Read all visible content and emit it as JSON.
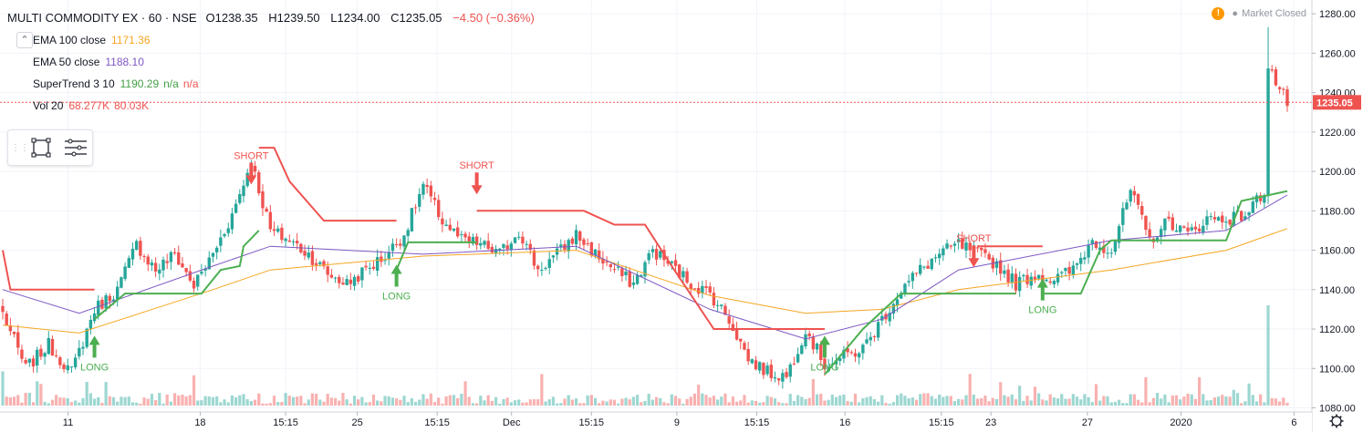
{
  "header": {
    "symbol": "MULTI COMMODITY EX · 60 · NSE",
    "open": "O1238.35",
    "high": "H1239.50",
    "low": "L1234.00",
    "close": "C1235.05",
    "change": "−4.50 (−0.36%)"
  },
  "indicators": [
    {
      "name": "EMA 100 close",
      "value": "1171.36",
      "color": "#f5a623"
    },
    {
      "name": "EMA 50 close",
      "value": "1188.10",
      "color": "#7e57c2"
    },
    {
      "name": "SuperTrend 3 10",
      "value": "1190.29",
      "extra1": "n/a",
      "extra2": "n/a",
      "color": "#43a047"
    },
    {
      "name": "Vol 20",
      "value": "68.277K",
      "extra1": "80.03K",
      "color": "#ef5350"
    }
  ],
  "status": {
    "icon": "warning-icon",
    "text": "Market Closed"
  },
  "toolbar": {
    "icons": [
      "drag-handle-icon",
      "rectangle-tool-icon",
      "object-tree-icon"
    ]
  },
  "settings_icon": "gear-icon",
  "chart_data": {
    "type": "candlestick",
    "y_axis": {
      "ticks": [
        "1280.00",
        "1260.00",
        "1240.00",
        "1220.00",
        "1200.00",
        "1180.00",
        "1160.00",
        "1140.00",
        "1120.00",
        "1100.00",
        "1080.00"
      ],
      "ylim": [
        1077,
        1287
      ]
    },
    "x_axis": {
      "ticks": [
        "11",
        "18",
        "15:15",
        "25",
        "15:15",
        "Dec",
        "15:15",
        "9",
        "15:15",
        "16",
        "15:15",
        "23",
        "27",
        "2020",
        "6"
      ]
    },
    "last_price": "1235.05",
    "colors": {
      "up": "#26a69a",
      "down": "#ef5350",
      "ema100": "#f5a623",
      "ema50": "#7e57c2",
      "st_up": "#4caf50",
      "st_down": "#ef5350",
      "vol_up": "#26a69a",
      "vol_down": "#ef5350"
    },
    "anchors": [
      [
        0,
        1128
      ],
      [
        6,
        1100
      ],
      [
        12,
        1112
      ],
      [
        18,
        1098
      ],
      [
        24,
        1130
      ],
      [
        30,
        1140
      ],
      [
        35,
        1163
      ],
      [
        40,
        1150
      ],
      [
        45,
        1158
      ],
      [
        50,
        1142
      ],
      [
        55,
        1158
      ],
      [
        60,
        1178
      ],
      [
        65,
        1205
      ],
      [
        70,
        1170
      ],
      [
        75,
        1165
      ],
      [
        80,
        1158
      ],
      [
        85,
        1148
      ],
      [
        90,
        1143
      ],
      [
        95,
        1150
      ],
      [
        100,
        1157
      ],
      [
        105,
        1168
      ],
      [
        110,
        1193
      ],
      [
        115,
        1175
      ],
      [
        120,
        1165
      ],
      [
        125,
        1163
      ],
      [
        130,
        1158
      ],
      [
        135,
        1170
      ],
      [
        140,
        1150
      ],
      [
        145,
        1158
      ],
      [
        150,
        1168
      ],
      [
        155,
        1158
      ],
      [
        160,
        1150
      ],
      [
        165,
        1143
      ],
      [
        170,
        1160
      ],
      [
        175,
        1152
      ],
      [
        180,
        1143
      ],
      [
        185,
        1138
      ],
      [
        190,
        1125
      ],
      [
        195,
        1105
      ],
      [
        200,
        1098
      ],
      [
        205,
        1096
      ],
      [
        210,
        1120
      ],
      [
        215,
        1102
      ],
      [
        220,
        1106
      ],
      [
        225,
        1110
      ],
      [
        230,
        1125
      ],
      [
        235,
        1140
      ],
      [
        240,
        1150
      ],
      [
        245,
        1158
      ],
      [
        250,
        1163
      ],
      [
        255,
        1158
      ],
      [
        260,
        1153
      ],
      [
        265,
        1143
      ],
      [
        270,
        1148
      ],
      [
        275,
        1145
      ],
      [
        280,
        1150
      ],
      [
        285,
        1165
      ],
      [
        290,
        1160
      ],
      [
        295,
        1190
      ],
      [
        300,
        1165
      ],
      [
        305,
        1175
      ],
      [
        310,
        1168
      ],
      [
        315,
        1176
      ],
      [
        320,
        1176
      ],
      [
        325,
        1178
      ],
      [
        330,
        1190
      ],
      [
        331,
        1255
      ],
      [
        333,
        1245
      ],
      [
        336,
        1235
      ]
    ],
    "ema50_points": [
      [
        0,
        1140
      ],
      [
        20,
        1128
      ],
      [
        55,
        1152
      ],
      [
        70,
        1162
      ],
      [
        110,
        1158
      ],
      [
        150,
        1162
      ],
      [
        185,
        1130
      ],
      [
        210,
        1115
      ],
      [
        230,
        1125
      ],
      [
        250,
        1150
      ],
      [
        290,
        1165
      ],
      [
        320,
        1170
      ],
      [
        336,
        1188
      ]
    ],
    "ema100_points": [
      [
        0,
        1122
      ],
      [
        20,
        1118
      ],
      [
        55,
        1140
      ],
      [
        70,
        1150
      ],
      [
        110,
        1157
      ],
      [
        150,
        1160
      ],
      [
        185,
        1137
      ],
      [
        210,
        1128
      ],
      [
        230,
        1130
      ],
      [
        250,
        1140
      ],
      [
        290,
        1150
      ],
      [
        320,
        1160
      ],
      [
        336,
        1171
      ]
    ],
    "supertrend_segments": [
      {
        "trend": "down",
        "points": [
          [
            0,
            1160
          ],
          [
            2,
            1140
          ],
          [
            24,
            1140
          ]
        ]
      },
      {
        "trend": "up",
        "points": [
          [
            24,
            1125
          ],
          [
            32,
            1138
          ],
          [
            52,
            1138
          ],
          [
            57,
            1150
          ],
          [
            62,
            1152
          ],
          [
            63,
            1162
          ],
          [
            67,
            1170
          ]
        ]
      },
      {
        "trend": "down",
        "points": [
          [
            67,
            1212
          ],
          [
            71,
            1212
          ],
          [
            75,
            1195
          ],
          [
            84,
            1175
          ],
          [
            103,
            1175
          ]
        ]
      },
      {
        "trend": "up",
        "points": [
          [
            103,
            1150
          ],
          [
            106,
            1164
          ],
          [
            124,
            1164
          ]
        ]
      },
      {
        "trend": "down",
        "points": [
          [
            124,
            1180
          ],
          [
            152,
            1180
          ],
          [
            160,
            1173
          ],
          [
            168,
            1173
          ],
          [
            175,
            1152
          ],
          [
            186,
            1120
          ],
          [
            215,
            1120
          ]
        ]
      },
      {
        "trend": "up",
        "points": [
          [
            215,
            1097
          ],
          [
            225,
            1120
          ],
          [
            235,
            1138
          ],
          [
            265,
            1138
          ]
        ]
      },
      {
        "trend": "down",
        "points": [
          [
            255,
            1162
          ],
          [
            272,
            1162
          ]
        ]
      },
      {
        "trend": "up",
        "points": [
          [
            272,
            1138
          ],
          [
            282,
            1138
          ],
          [
            287,
            1160
          ],
          [
            290,
            1165
          ],
          [
            320,
            1165
          ],
          [
            324,
            1185
          ],
          [
            336,
            1190
          ]
        ]
      }
    ],
    "signals": [
      {
        "type": "LONG",
        "index": 24,
        "price": 1112
      },
      {
        "type": "SHORT",
        "index": 65,
        "price": 1198
      },
      {
        "type": "LONG",
        "index": 103,
        "price": 1148
      },
      {
        "type": "SHORT",
        "index": 124,
        "price": 1193
      },
      {
        "type": "LONG",
        "index": 215,
        "price": 1112
      },
      {
        "type": "SHORT",
        "index": 254,
        "price": 1156
      },
      {
        "type": "LONG",
        "index": 272,
        "price": 1141
      }
    ]
  }
}
